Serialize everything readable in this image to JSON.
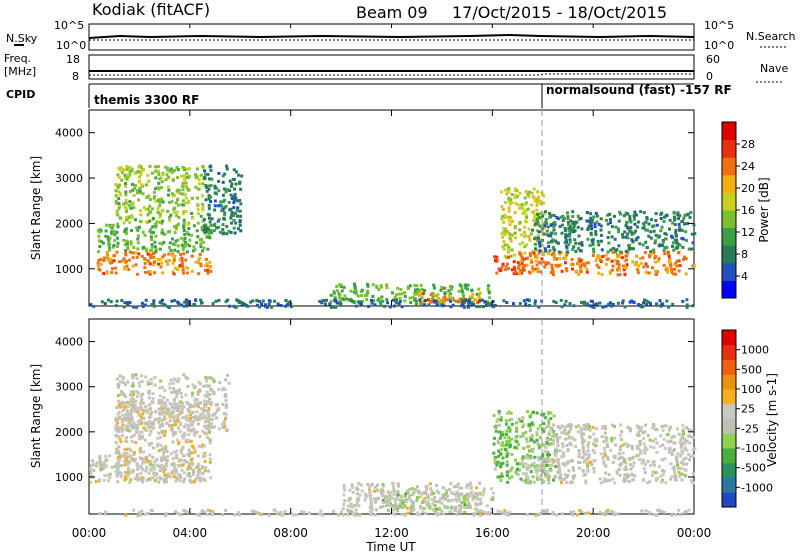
{
  "header": {
    "station": "Kodiak (fitACF)",
    "beam": "Beam 09",
    "date_range": "17/Oct/2015 - 18/Oct/2015"
  },
  "top_panels": {
    "nsky_label": "N.Sky",
    "nsearch_label": "N.Search",
    "nsky_ticks": [
      "10^5",
      "10^0"
    ],
    "nsearch_ticks": [
      "10^5",
      "10^0"
    ],
    "freq_label": "Freq.",
    "freq_unit": "[MHz]",
    "freq_ticks": [
      "18",
      "8"
    ],
    "nave_label": "Nave",
    "nave_ticks": [
      "60",
      "0"
    ],
    "cpid_label": "CPID",
    "cpid_segments": [
      "themis 3300 RF",
      "normalsound (fast) -157 RF"
    ],
    "cpid_change_hour": 17.9
  },
  "colorbars": {
    "power": {
      "label": "Power [dB]",
      "ticks": [
        "28",
        "24",
        "20",
        "16",
        "12",
        "8",
        "4"
      ],
      "colors": [
        "#0000ff",
        "#2050c0",
        "#2a7a5a",
        "#39a046",
        "#7cc032",
        "#c8d020",
        "#f0b010",
        "#f07010",
        "#e83010",
        "#e00000"
      ]
    },
    "velocity": {
      "label": "Velocity [m s-1]",
      "ticks": [
        "1000",
        "500",
        "100",
        "25",
        "-25",
        "-100",
        "-500",
        "-1000"
      ],
      "colors": [
        "#2048c0",
        "#2878a0",
        "#2a9060",
        "#48b040",
        "#90d050",
        "#c0c0b0",
        "#c8c8c0",
        "#f0b020",
        "#f09010",
        "#f06010",
        "#e83010",
        "#e00000"
      ]
    }
  },
  "axes": {
    "ylabel": "Slant Range [km]",
    "yticks": [
      "1000",
      "2000",
      "3000",
      "4000"
    ],
    "xticks": [
      "00:00",
      "04:00",
      "08:00",
      "12:00",
      "16:00",
      "20:00",
      "00:00"
    ],
    "xlabel": "Time UT"
  },
  "chart_data": [
    {
      "type": "heatmap",
      "name": "Power [dB]",
      "x_range_hours": [
        0,
        24
      ],
      "ylim": [
        180,
        4500
      ],
      "value_range": [
        0,
        30
      ],
      "regions": [
        {
          "t0": 0.3,
          "t1": 4.8,
          "r0": 900,
          "r1": 1400,
          "value": 22
        },
        {
          "t0": 0.3,
          "t1": 4.8,
          "r0": 1400,
          "r1": 2000,
          "value": 12
        },
        {
          "t0": 1.0,
          "t1": 4.5,
          "r0": 2000,
          "r1": 3300,
          "value": 14
        },
        {
          "t0": 4.5,
          "t1": 6.0,
          "r0": 1800,
          "r1": 3300,
          "value": 8
        },
        {
          "t0": 9.5,
          "t1": 16.0,
          "r0": 250,
          "r1": 700,
          "value": 12
        },
        {
          "t0": 13.0,
          "t1": 15.5,
          "r0": 250,
          "r1": 500,
          "value": 22
        },
        {
          "t0": 16.0,
          "t1": 17.5,
          "r0": 900,
          "r1": 1300,
          "value": 24
        },
        {
          "t0": 16.3,
          "t1": 18.0,
          "r0": 1300,
          "r1": 2800,
          "value": 16
        },
        {
          "t0": 17.0,
          "t1": 24.0,
          "r0": 900,
          "r1": 1400,
          "value": 22
        },
        {
          "t0": 17.5,
          "t1": 24.0,
          "r0": 1400,
          "r1": 2300,
          "value": 8
        },
        {
          "t0": 0.0,
          "t1": 24.0,
          "r0": 180,
          "r1": 350,
          "value": 6
        }
      ]
    },
    {
      "type": "heatmap",
      "name": "Velocity [m s-1]",
      "x_range_hours": [
        0,
        24
      ],
      "ylim": [
        180,
        4500
      ],
      "value_range": [
        -1000,
        1000
      ],
      "regions": [
        {
          "t0": 0.0,
          "t1": 4.5,
          "r0": 900,
          "r1": 1500,
          "value": 0
        },
        {
          "t0": 1.0,
          "t1": 4.8,
          "r0": 900,
          "r1": 2700,
          "value": 60
        },
        {
          "t0": 1.0,
          "t1": 5.5,
          "r0": 2000,
          "r1": 3300,
          "value": 0
        },
        {
          "t0": 11.5,
          "t1": 15.5,
          "r0": 250,
          "r1": 700,
          "value": -200
        },
        {
          "t0": 10.0,
          "t1": 16.0,
          "r0": 300,
          "r1": 900,
          "value": 0
        },
        {
          "t0": 16.0,
          "t1": 18.5,
          "r0": 900,
          "r1": 2500,
          "value": -300
        },
        {
          "t0": 17.0,
          "t1": 24.0,
          "r0": 900,
          "r1": 1500,
          "value": 0
        },
        {
          "t0": 18.0,
          "t1": 24.0,
          "r0": 1500,
          "r1": 2200,
          "value": 0
        },
        {
          "t0": 0.0,
          "t1": 24.0,
          "r0": 180,
          "r1": 300,
          "value": 20
        }
      ]
    }
  ]
}
